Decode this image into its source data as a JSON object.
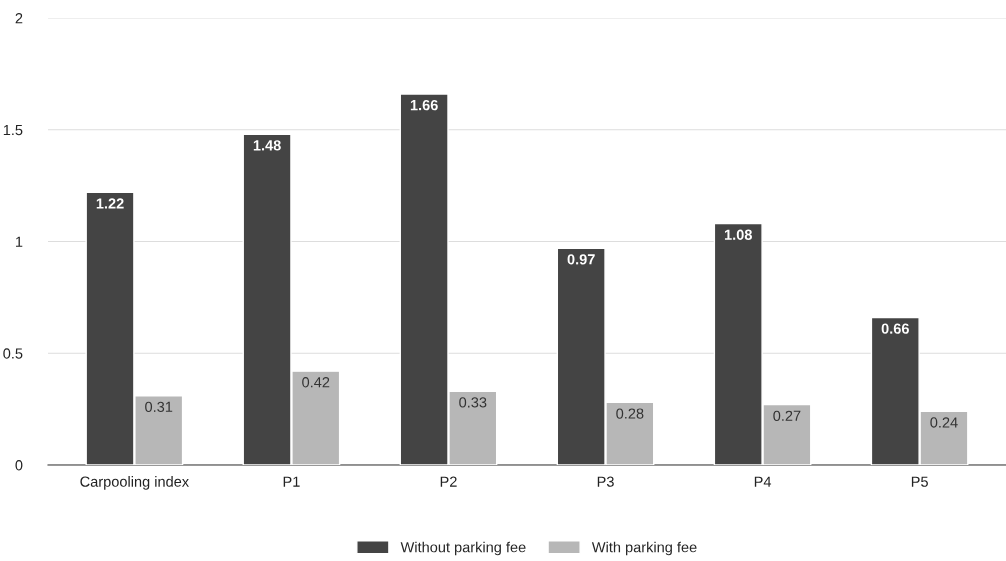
{
  "chart_data": {
    "type": "bar",
    "categories": [
      "Carpooling index",
      "P1",
      "P2",
      "P3",
      "P4",
      "P5"
    ],
    "series": [
      {
        "name": "Without parking fee",
        "color": "#444444",
        "values": [
          1.22,
          1.48,
          1.66,
          0.97,
          1.08,
          0.66
        ]
      },
      {
        "name": "With parking fee",
        "color": "#b7b7b7",
        "values": [
          0.31,
          0.42,
          0.33,
          0.28,
          0.27,
          0.24
        ]
      }
    ],
    "ylim": [
      0,
      2
    ],
    "yticks": [
      0,
      0.5,
      1,
      1.5,
      2
    ],
    "grid": "y",
    "legend": "bottom",
    "data_labels": true
  }
}
